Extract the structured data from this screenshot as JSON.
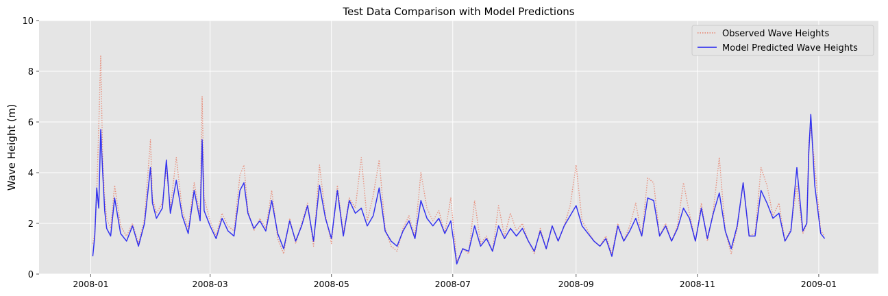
{
  "chart_data": {
    "type": "line",
    "title": "Test Data Comparison with Model Predictions",
    "xlabel": "",
    "ylabel": "Wave Height (m)",
    "ylim": [
      0,
      10
    ],
    "xlim": [
      "2007-12-06",
      "2009-01-31"
    ],
    "x_ticks": [
      "2008-01",
      "2008-03",
      "2008-05",
      "2008-07",
      "2008-09",
      "2008-11",
      "2009-01"
    ],
    "y_ticks": [
      0,
      2,
      4,
      6,
      8,
      10
    ],
    "grid": true,
    "legend_placement": "top-right",
    "series": [
      {
        "name": "Observed Wave Heights",
        "color": "#e8826d",
        "style": "dotted",
        "x": [
          "2008-01-02",
          "2008-01-03",
          "2008-01-04",
          "2008-01-05",
          "2008-01-06",
          "2008-01-07",
          "2008-01-08",
          "2008-01-09",
          "2008-01-11",
          "2008-01-13",
          "2008-01-16",
          "2008-01-19",
          "2008-01-22",
          "2008-01-25",
          "2008-01-28",
          "2008-01-31",
          "2008-02-01",
          "2008-02-03",
          "2008-02-06",
          "2008-02-08",
          "2008-02-10",
          "2008-02-13",
          "2008-02-16",
          "2008-02-19",
          "2008-02-22",
          "2008-02-25",
          "2008-02-26",
          "2008-02-27",
          "2008-03-01",
          "2008-03-04",
          "2008-03-07",
          "2008-03-10",
          "2008-03-13",
          "2008-03-16",
          "2008-03-18",
          "2008-03-20",
          "2008-03-23",
          "2008-03-26",
          "2008-03-29",
          "2008-04-01",
          "2008-04-04",
          "2008-04-07",
          "2008-04-10",
          "2008-04-13",
          "2008-04-16",
          "2008-04-19",
          "2008-04-22",
          "2008-04-25",
          "2008-04-28",
          "2008-05-01",
          "2008-05-04",
          "2008-05-07",
          "2008-05-10",
          "2008-05-13",
          "2008-05-16",
          "2008-05-19",
          "2008-05-22",
          "2008-05-25",
          "2008-05-28",
          "2008-05-31",
          "2008-06-03",
          "2008-06-06",
          "2008-06-09",
          "2008-06-12",
          "2008-06-15",
          "2008-06-18",
          "2008-06-21",
          "2008-06-24",
          "2008-06-27",
          "2008-06-30",
          "2008-07-03",
          "2008-07-06",
          "2008-07-09",
          "2008-07-12",
          "2008-07-15",
          "2008-07-18",
          "2008-07-21",
          "2008-07-24",
          "2008-07-27",
          "2008-07-30",
          "2008-08-02",
          "2008-08-05",
          "2008-08-08",
          "2008-08-11",
          "2008-08-14",
          "2008-08-17",
          "2008-08-20",
          "2008-08-23",
          "2008-08-26",
          "2008-08-29",
          "2008-09-01",
          "2008-09-04",
          "2008-09-07",
          "2008-09-10",
          "2008-09-13",
          "2008-09-16",
          "2008-09-19",
          "2008-09-22",
          "2008-09-25",
          "2008-09-28",
          "2008-10-01",
          "2008-10-04",
          "2008-10-07",
          "2008-10-10",
          "2008-10-13",
          "2008-10-16",
          "2008-10-19",
          "2008-10-22",
          "2008-10-25",
          "2008-10-28",
          "2008-10-31",
          "2008-11-03",
          "2008-11-06",
          "2008-11-09",
          "2008-11-12",
          "2008-11-15",
          "2008-11-18",
          "2008-11-21",
          "2008-11-24",
          "2008-11-27",
          "2008-11-30",
          "2008-12-03",
          "2008-12-06",
          "2008-12-09",
          "2008-12-12",
          "2008-12-15",
          "2008-12-18",
          "2008-12-21",
          "2008-12-24",
          "2008-12-26",
          "2008-12-27",
          "2008-12-28",
          "2008-12-30",
          "2009-01-02",
          "2009-01-04"
        ],
        "values": [
          1.2,
          1.6,
          3.2,
          5.8,
          8.6,
          4.5,
          3.0,
          2.2,
          1.8,
          3.5,
          1.9,
          1.5,
          2.0,
          1.2,
          2.2,
          5.3,
          3.0,
          2.4,
          2.8,
          4.2,
          2.6,
          4.6,
          2.5,
          1.8,
          3.6,
          2.3,
          7.0,
          3.0,
          2.1,
          1.5,
          2.4,
          1.9,
          1.7,
          3.9,
          4.3,
          2.5,
          1.7,
          2.2,
          1.8,
          3.3,
          1.4,
          0.8,
          2.2,
          1.2,
          2.0,
          2.8,
          1.1,
          4.3,
          2.3,
          1.2,
          3.5,
          1.6,
          3.0,
          2.6,
          4.6,
          2.1,
          3.1,
          4.5,
          1.8,
          1.1,
          0.9,
          1.8,
          2.3,
          1.5,
          4.0,
          2.6,
          2.1,
          2.5,
          1.6,
          3.0,
          0.5,
          1.0,
          0.8,
          2.9,
          1.2,
          1.5,
          0.9,
          2.7,
          1.5,
          2.4,
          1.7,
          2.0,
          1.3,
          0.8,
          1.8,
          1.0,
          1.9,
          1.3,
          1.9,
          2.7,
          4.3,
          2.1,
          1.7,
          1.3,
          1.1,
          1.5,
          0.8,
          2.0,
          1.3,
          1.9,
          2.8,
          1.5,
          3.8,
          3.6,
          1.5,
          2.0,
          1.3,
          1.9,
          3.6,
          2.4,
          1.3,
          2.8,
          1.3,
          2.5,
          4.6,
          1.7,
          0.8,
          1.8,
          3.6,
          1.5,
          1.6,
          4.2,
          3.5,
          2.3,
          2.8,
          1.3,
          1.8,
          3.5,
          1.6,
          2.0,
          5.2,
          5.8,
          4.3,
          1.7,
          1.5
        ]
      },
      {
        "name": "Model Predicted Wave Heights",
        "color": "#1f1ff0",
        "style": "solid",
        "x": [
          "2008-01-02",
          "2008-01-03",
          "2008-01-04",
          "2008-01-05",
          "2008-01-06",
          "2008-01-07",
          "2008-01-08",
          "2008-01-09",
          "2008-01-11",
          "2008-01-13",
          "2008-01-16",
          "2008-01-19",
          "2008-01-22",
          "2008-01-25",
          "2008-01-28",
          "2008-01-31",
          "2008-02-01",
          "2008-02-03",
          "2008-02-06",
          "2008-02-08",
          "2008-02-10",
          "2008-02-13",
          "2008-02-16",
          "2008-02-19",
          "2008-02-22",
          "2008-02-25",
          "2008-02-26",
          "2008-02-27",
          "2008-03-01",
          "2008-03-04",
          "2008-03-07",
          "2008-03-10",
          "2008-03-13",
          "2008-03-16",
          "2008-03-18",
          "2008-03-20",
          "2008-03-23",
          "2008-03-26",
          "2008-03-29",
          "2008-04-01",
          "2008-04-04",
          "2008-04-07",
          "2008-04-10",
          "2008-04-13",
          "2008-04-16",
          "2008-04-19",
          "2008-04-22",
          "2008-04-25",
          "2008-04-28",
          "2008-05-01",
          "2008-05-04",
          "2008-05-07",
          "2008-05-10",
          "2008-05-13",
          "2008-05-16",
          "2008-05-19",
          "2008-05-22",
          "2008-05-25",
          "2008-05-28",
          "2008-05-31",
          "2008-06-03",
          "2008-06-06",
          "2008-06-09",
          "2008-06-12",
          "2008-06-15",
          "2008-06-18",
          "2008-06-21",
          "2008-06-24",
          "2008-06-27",
          "2008-06-30",
          "2008-07-03",
          "2008-07-06",
          "2008-07-09",
          "2008-07-12",
          "2008-07-15",
          "2008-07-18",
          "2008-07-21",
          "2008-07-24",
          "2008-07-27",
          "2008-07-30",
          "2008-08-02",
          "2008-08-05",
          "2008-08-08",
          "2008-08-11",
          "2008-08-14",
          "2008-08-17",
          "2008-08-20",
          "2008-08-23",
          "2008-08-26",
          "2008-08-29",
          "2008-09-01",
          "2008-09-04",
          "2008-09-07",
          "2008-09-10",
          "2008-09-13",
          "2008-09-16",
          "2008-09-19",
          "2008-09-22",
          "2008-09-25",
          "2008-09-28",
          "2008-10-01",
          "2008-10-04",
          "2008-10-07",
          "2008-10-10",
          "2008-10-13",
          "2008-10-16",
          "2008-10-19",
          "2008-10-22",
          "2008-10-25",
          "2008-10-28",
          "2008-10-31",
          "2008-11-03",
          "2008-11-06",
          "2008-11-09",
          "2008-11-12",
          "2008-11-15",
          "2008-11-18",
          "2008-11-21",
          "2008-11-24",
          "2008-11-27",
          "2008-11-30",
          "2008-12-03",
          "2008-12-06",
          "2008-12-09",
          "2008-12-12",
          "2008-12-15",
          "2008-12-18",
          "2008-12-21",
          "2008-12-24",
          "2008-12-26",
          "2008-12-27",
          "2008-12-28",
          "2008-12-30",
          "2009-01-02",
          "2009-01-04"
        ],
        "values": [
          0.7,
          1.5,
          3.4,
          2.6,
          5.7,
          4.0,
          2.5,
          1.8,
          1.5,
          3.0,
          1.6,
          1.3,
          1.9,
          1.1,
          2.0,
          4.2,
          2.8,
          2.2,
          2.6,
          4.5,
          2.4,
          3.7,
          2.3,
          1.6,
          3.3,
          2.1,
          5.3,
          2.5,
          1.9,
          1.4,
          2.2,
          1.7,
          1.5,
          3.3,
          3.6,
          2.4,
          1.8,
          2.1,
          1.7,
          2.9,
          1.6,
          1.0,
          2.1,
          1.3,
          1.9,
          2.7,
          1.3,
          3.5,
          2.2,
          1.4,
          3.3,
          1.5,
          2.9,
          2.4,
          2.6,
          1.9,
          2.3,
          3.4,
          1.7,
          1.3,
          1.1,
          1.7,
          2.1,
          1.4,
          2.9,
          2.2,
          1.9,
          2.2,
          1.6,
          2.1,
          0.4,
          1.0,
          0.9,
          1.9,
          1.1,
          1.4,
          0.9,
          1.9,
          1.4,
          1.8,
          1.5,
          1.8,
          1.3,
          0.9,
          1.7,
          1.0,
          1.9,
          1.3,
          1.9,
          2.3,
          2.7,
          1.9,
          1.6,
          1.3,
          1.1,
          1.4,
          0.7,
          1.9,
          1.3,
          1.7,
          2.2,
          1.5,
          3.0,
          2.9,
          1.5,
          1.9,
          1.3,
          1.8,
          2.6,
          2.2,
          1.3,
          2.6,
          1.4,
          2.4,
          3.2,
          1.7,
          1.0,
          1.9,
          3.6,
          1.5,
          1.5,
          3.3,
          2.8,
          2.2,
          2.4,
          1.3,
          1.7,
          4.2,
          1.7,
          2.0,
          4.8,
          6.3,
          3.5,
          1.6,
          1.4
        ]
      }
    ]
  }
}
